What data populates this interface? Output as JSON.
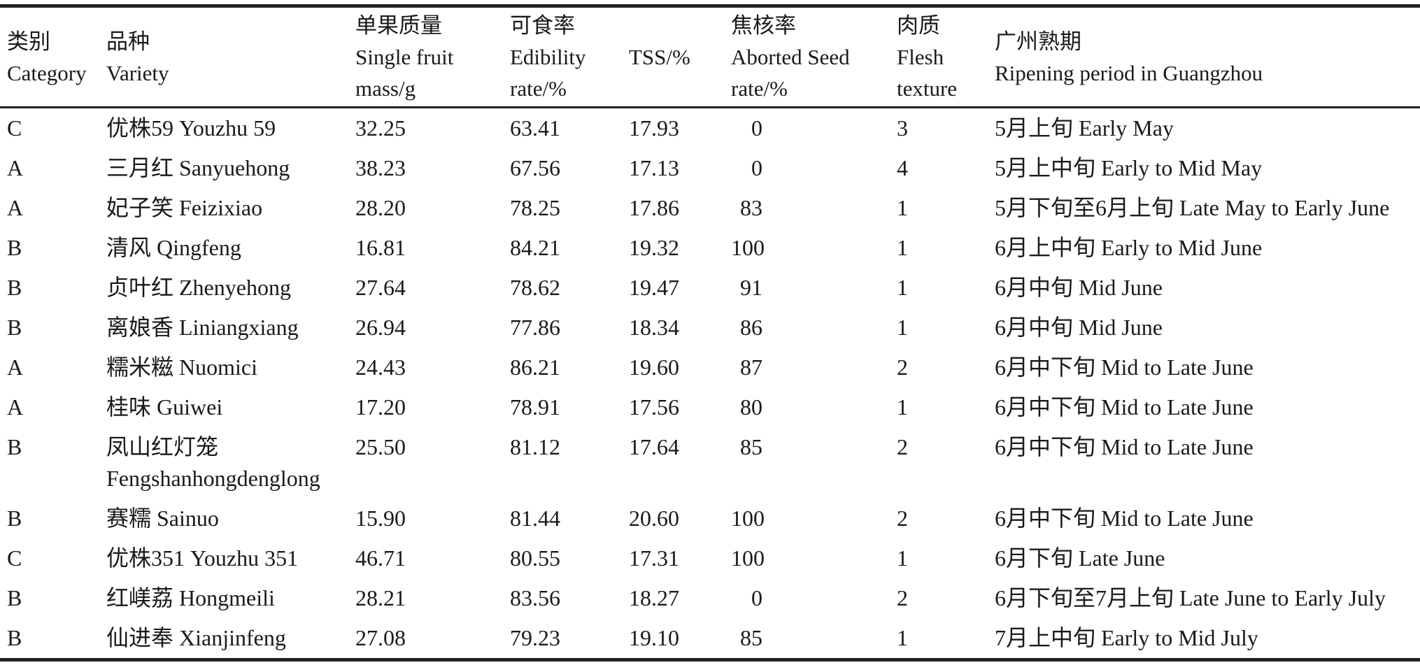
{
  "page": {
    "background": "#ffffff",
    "text_color": "#1a1a1a",
    "rule_color": "#231f20"
  },
  "table": {
    "headers": [
      {
        "text": "类别\nCategory"
      },
      {
        "text": "品种\nVariety"
      },
      {
        "text": "单果质量\nSingle fruit\nmass/g"
      },
      {
        "text": "可食率\nEdibility\nrate/%"
      },
      {
        "text": "TSS/%"
      },
      {
        "text": "焦核率\nAborted Seed\nrate/%"
      },
      {
        "text": "肉质\nFlesh\ntexture"
      },
      {
        "text": "广州熟期\nRipening period in Guangzhou"
      }
    ],
    "rows": [
      {
        "category": "C",
        "variety": "优株59 Youzhu 59",
        "mass": "32.25",
        "edibility": "63.41",
        "tss": "17.93",
        "aborted": "0",
        "texture": "3",
        "ripening": "5月上旬 Early May"
      },
      {
        "category": "A",
        "variety": "三月红 Sanyuehong",
        "mass": "38.23",
        "edibility": "67.56",
        "tss": "17.13",
        "aborted": "0",
        "texture": "4",
        "ripening": "5月上中旬 Early to Mid May"
      },
      {
        "category": "A",
        "variety": "妃子笑 Feizixiao",
        "mass": "28.20",
        "edibility": "78.25",
        "tss": "17.86",
        "aborted": "83",
        "texture": "1",
        "ripening": "5月下旬至6月上旬 Late May to Early June"
      },
      {
        "category": "B",
        "variety": "清风 Qingfeng",
        "mass": "16.81",
        "edibility": "84.21",
        "tss": "19.32",
        "aborted": "100",
        "texture": "1",
        "ripening": "6月上中旬 Early to Mid June"
      },
      {
        "category": "B",
        "variety": "贞叶红 Zhenyehong",
        "mass": "27.64",
        "edibility": "78.62",
        "tss": "19.47",
        "aborted": "91",
        "texture": "1",
        "ripening": "6月中旬 Mid June"
      },
      {
        "category": "B",
        "variety": "离娘香 Liniangxiang",
        "mass": "26.94",
        "edibility": "77.86",
        "tss": "18.34",
        "aborted": "86",
        "texture": "1",
        "ripening": "6月中旬 Mid June"
      },
      {
        "category": "A",
        "variety": "糯米糍 Nuomici",
        "mass": "24.43",
        "edibility": "86.21",
        "tss": "19.60",
        "aborted": "87",
        "texture": "2",
        "ripening": "6月中下旬 Mid to Late June"
      },
      {
        "category": "A",
        "variety": "桂味 Guiwei",
        "mass": "17.20",
        "edibility": "78.91",
        "tss": "17.56",
        "aborted": "80",
        "texture": "1",
        "ripening": "6月中下旬 Mid to Late June"
      },
      {
        "category": "B",
        "variety": "凤山红灯笼 Fengshanhongdenglong",
        "mass": "25.50",
        "edibility": "81.12",
        "tss": "17.64",
        "aborted": "85",
        "texture": "2",
        "ripening": "6月中下旬 Mid to Late June"
      },
      {
        "category": "B",
        "variety": "赛糯 Sainuo",
        "mass": "15.90",
        "edibility": "81.44",
        "tss": "20.60",
        "aborted": "100",
        "texture": "2",
        "ripening": "6月中下旬 Mid to Late June"
      },
      {
        "category": "C",
        "variety": "优株351 Youzhu 351",
        "mass": "46.71",
        "edibility": "80.55",
        "tss": "17.31",
        "aborted": "100",
        "texture": "1",
        "ripening": "6月下旬 Late June"
      },
      {
        "category": "B",
        "variety": "红嵄荔 Hongmeili",
        "mass": "28.21",
        "edibility": "83.56",
        "tss": "18.27",
        "aborted": "0",
        "texture": "2",
        "ripening": "6月下旬至7月上旬 Late June to Early July"
      },
      {
        "category": "B",
        "variety": "仙进奉 Xianjinfeng",
        "mass": "27.08",
        "edibility": "79.23",
        "tss": "19.10",
        "aborted": "85",
        "texture": "1",
        "ripening": "7月上中旬 Early to Mid July"
      }
    ]
  }
}
